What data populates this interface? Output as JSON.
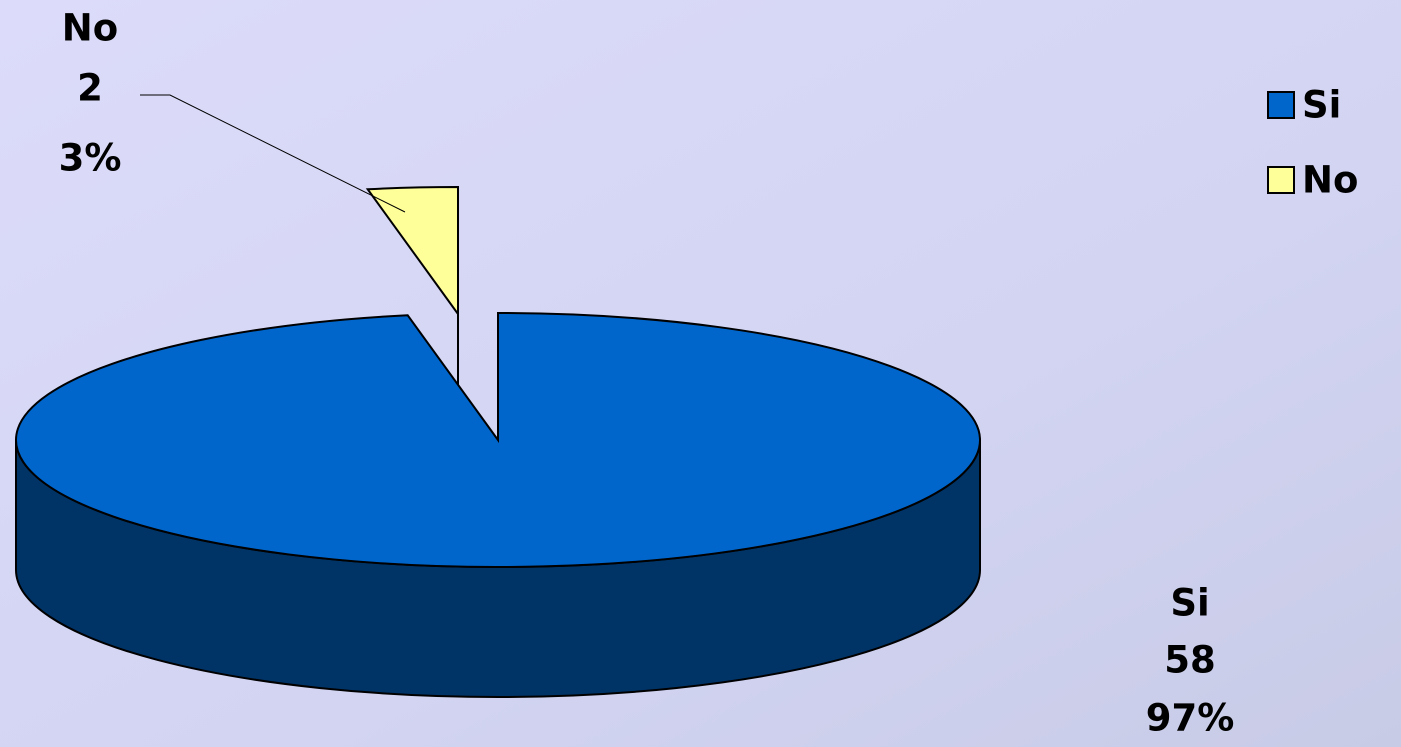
{
  "chart_data": {
    "type": "pie3d",
    "categories": [
      "Si",
      "No"
    ],
    "values": [
      97,
      3
    ],
    "value_labels": [
      "97%",
      "3%"
    ],
    "counts": [
      58,
      2
    ],
    "colors": [
      "#0066cc",
      "#ffff99"
    ],
    "side_colors": [
      "#003366",
      "#808050"
    ],
    "exploded": [
      false,
      true
    ],
    "legend": "top-right"
  }
}
